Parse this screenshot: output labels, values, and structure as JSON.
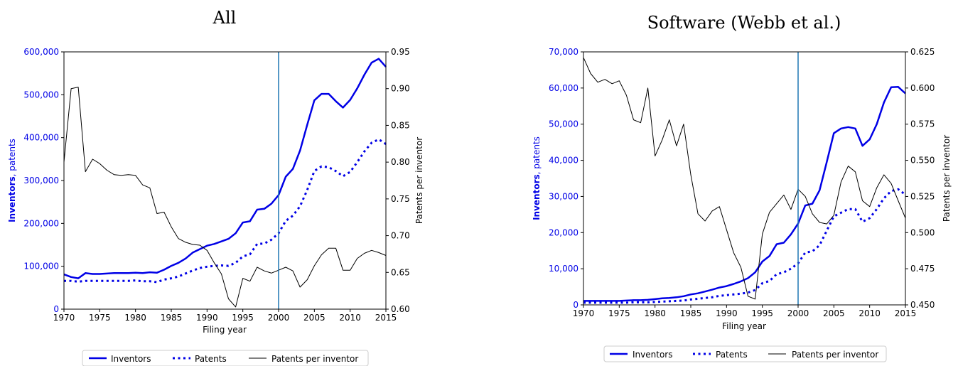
{
  "colors": {
    "inventors": "#0000e6",
    "patents": "#0000e6",
    "ppi": "#000000",
    "vline": "#1f77b4",
    "left_axis_text": "#0000e6"
  },
  "chart_data": [
    {
      "type": "line",
      "title": "All",
      "xlabel": "Filing year",
      "ylabel_bold": "Inventors",
      "ylabel_rest": ", patents",
      "y2label": "Patents per inventor",
      "xlim": [
        1970,
        2015
      ],
      "ylim": [
        0,
        600000
      ],
      "y2lim": [
        0.6,
        0.95
      ],
      "xticks": [
        "1970",
        "1975",
        "1980",
        "1985",
        "1990",
        "1995",
        "2000",
        "2005",
        "2010",
        "2015"
      ],
      "yticks": [
        "0",
        "100,000",
        "200,000",
        "300,000",
        "400,000",
        "500,000",
        "600,000"
      ],
      "y2ticks": [
        "0.60",
        "0.65",
        "0.70",
        "0.75",
        "0.80",
        "0.85",
        "0.90",
        "0.95"
      ],
      "vline_x": 2000,
      "x": [
        1970,
        1971,
        1972,
        1973,
        1974,
        1975,
        1976,
        1977,
        1978,
        1979,
        1980,
        1981,
        1982,
        1983,
        1984,
        1985,
        1986,
        1987,
        1988,
        1989,
        1990,
        1991,
        1992,
        1993,
        1994,
        1995,
        1996,
        1997,
        1998,
        1999,
        2000,
        2001,
        2002,
        2003,
        2004,
        2005,
        2006,
        2007,
        2008,
        2009,
        2010,
        2011,
        2012,
        2013,
        2014,
        2015
      ],
      "series": [
        {
          "name": "Inventors",
          "axis": "left",
          "style": "solid",
          "values": [
            81000,
            75000,
            72000,
            84000,
            82000,
            82000,
            83000,
            84000,
            84000,
            84000,
            85000,
            84000,
            86000,
            85000,
            92000,
            101000,
            108000,
            118000,
            132000,
            140000,
            148000,
            152000,
            158000,
            164000,
            177000,
            202000,
            205000,
            232000,
            234000,
            246000,
            266000,
            309000,
            327000,
            370000,
            430000,
            487000,
            502000,
            502000,
            485000,
            470000,
            488000,
            515000,
            547000,
            575000,
            584000,
            565000
          ]
        },
        {
          "name": "Patents",
          "axis": "left",
          "style": "dotted",
          "values": [
            66000,
            66000,
            64000,
            66000,
            66000,
            66000,
            66000,
            66000,
            66000,
            66000,
            67000,
            65000,
            65000,
            63000,
            69000,
            72000,
            76000,
            83000,
            90000,
            96000,
            99000,
            101000,
            102000,
            101000,
            108000,
            123000,
            128000,
            152000,
            153000,
            162000,
            177000,
            206000,
            218000,
            240000,
            278000,
            322000,
            333000,
            331000,
            322000,
            310000,
            320000,
            343000,
            368000,
            388000,
            396000,
            385000
          ]
        },
        {
          "name": "Patents per inventor",
          "axis": "right",
          "style": "thin",
          "values": [
            0.8,
            0.9,
            0.902,
            0.787,
            0.804,
            0.798,
            0.789,
            0.783,
            0.782,
            0.783,
            0.782,
            0.769,
            0.765,
            0.73,
            0.732,
            0.712,
            0.696,
            0.691,
            0.688,
            0.687,
            0.68,
            0.663,
            0.648,
            0.614,
            0.603,
            0.642,
            0.638,
            0.657,
            0.652,
            0.649,
            0.653,
            0.657,
            0.652,
            0.63,
            0.64,
            0.659,
            0.674,
            0.683,
            0.683,
            0.653,
            0.653,
            0.669,
            0.676,
            0.68,
            0.677,
            0.673
          ]
        }
      ]
    },
    {
      "type": "line",
      "title": "Software (Webb et al.)",
      "xlabel": "Filing year",
      "ylabel_bold": "Inventors",
      "ylabel_rest": ", patents",
      "y2label": "Patents per inventor",
      "xlim": [
        1970,
        2015
      ],
      "ylim": [
        0,
        70000
      ],
      "y2lim": [
        0.45,
        0.625
      ],
      "xticks": [
        "1970",
        "1975",
        "1980",
        "1985",
        "1990",
        "1995",
        "2000",
        "2005",
        "2010",
        "2015"
      ],
      "yticks": [
        "0",
        "10,000",
        "20,000",
        "30,000",
        "40,000",
        "50,000",
        "60,000",
        "70,000"
      ],
      "y2ticks": [
        "0.450",
        "0.475",
        "0.500",
        "0.525",
        "0.550",
        "0.575",
        "0.600",
        "0.625"
      ],
      "vline_x": 2000,
      "x": [
        1970,
        1971,
        1972,
        1973,
        1974,
        1975,
        1976,
        1977,
        1978,
        1979,
        1980,
        1981,
        1982,
        1983,
        1984,
        1985,
        1986,
        1987,
        1988,
        1989,
        1990,
        1991,
        1992,
        1993,
        1994,
        1995,
        1996,
        1997,
        1998,
        1999,
        2000,
        2001,
        2002,
        2003,
        2004,
        2005,
        2006,
        2007,
        2008,
        2009,
        2010,
        2011,
        2012,
        2013,
        2014,
        2015
      ],
      "series": [
        {
          "name": "Inventors",
          "axis": "left",
          "style": "solid",
          "values": [
            1100,
            1100,
            1100,
            1100,
            1100,
            1100,
            1200,
            1300,
            1300,
            1400,
            1600,
            1800,
            1900,
            2100,
            2400,
            2900,
            3200,
            3700,
            4200,
            4800,
            5200,
            5800,
            6500,
            7400,
            9000,
            12000,
            13500,
            16800,
            17200,
            19500,
            22500,
            27500,
            28000,
            31700,
            39500,
            47500,
            48800,
            49200,
            48800,
            44000,
            45800,
            50000,
            56000,
            60200,
            60300,
            58500
          ]
        },
        {
          "name": "Patents",
          "axis": "left",
          "style": "dotted",
          "values": [
            600,
            600,
            600,
            600,
            600,
            600,
            600,
            700,
            700,
            700,
            800,
            900,
            1000,
            1100,
            1200,
            1500,
            1700,
            1900,
            2100,
            2500,
            2700,
            2900,
            3100,
            3400,
            4100,
            6000,
            6600,
            8500,
            9000,
            10000,
            11500,
            14500,
            14800,
            16500,
            20500,
            24500,
            25500,
            26500,
            26500,
            23000,
            24000,
            26500,
            29500,
            31500,
            32000,
            30500
          ]
        },
        {
          "name": "Patents per inventor",
          "axis": "right",
          "style": "thin",
          "values": [
            0.621,
            0.61,
            0.604,
            0.606,
            0.603,
            0.605,
            0.595,
            0.578,
            0.576,
            0.6,
            0.553,
            0.564,
            0.578,
            0.56,
            0.575,
            0.54,
            0.513,
            0.508,
            0.515,
            0.518,
            0.502,
            0.486,
            0.476,
            0.456,
            0.454,
            0.499,
            0.514,
            0.52,
            0.526,
            0.516,
            0.53,
            0.525,
            0.513,
            0.507,
            0.506,
            0.512,
            0.535,
            0.546,
            0.542,
            0.522,
            0.518,
            0.531,
            0.54,
            0.534,
            0.522,
            0.51
          ]
        }
      ]
    }
  ],
  "legend": {
    "items": [
      "Inventors",
      "Patents",
      "Patents per inventor"
    ]
  }
}
